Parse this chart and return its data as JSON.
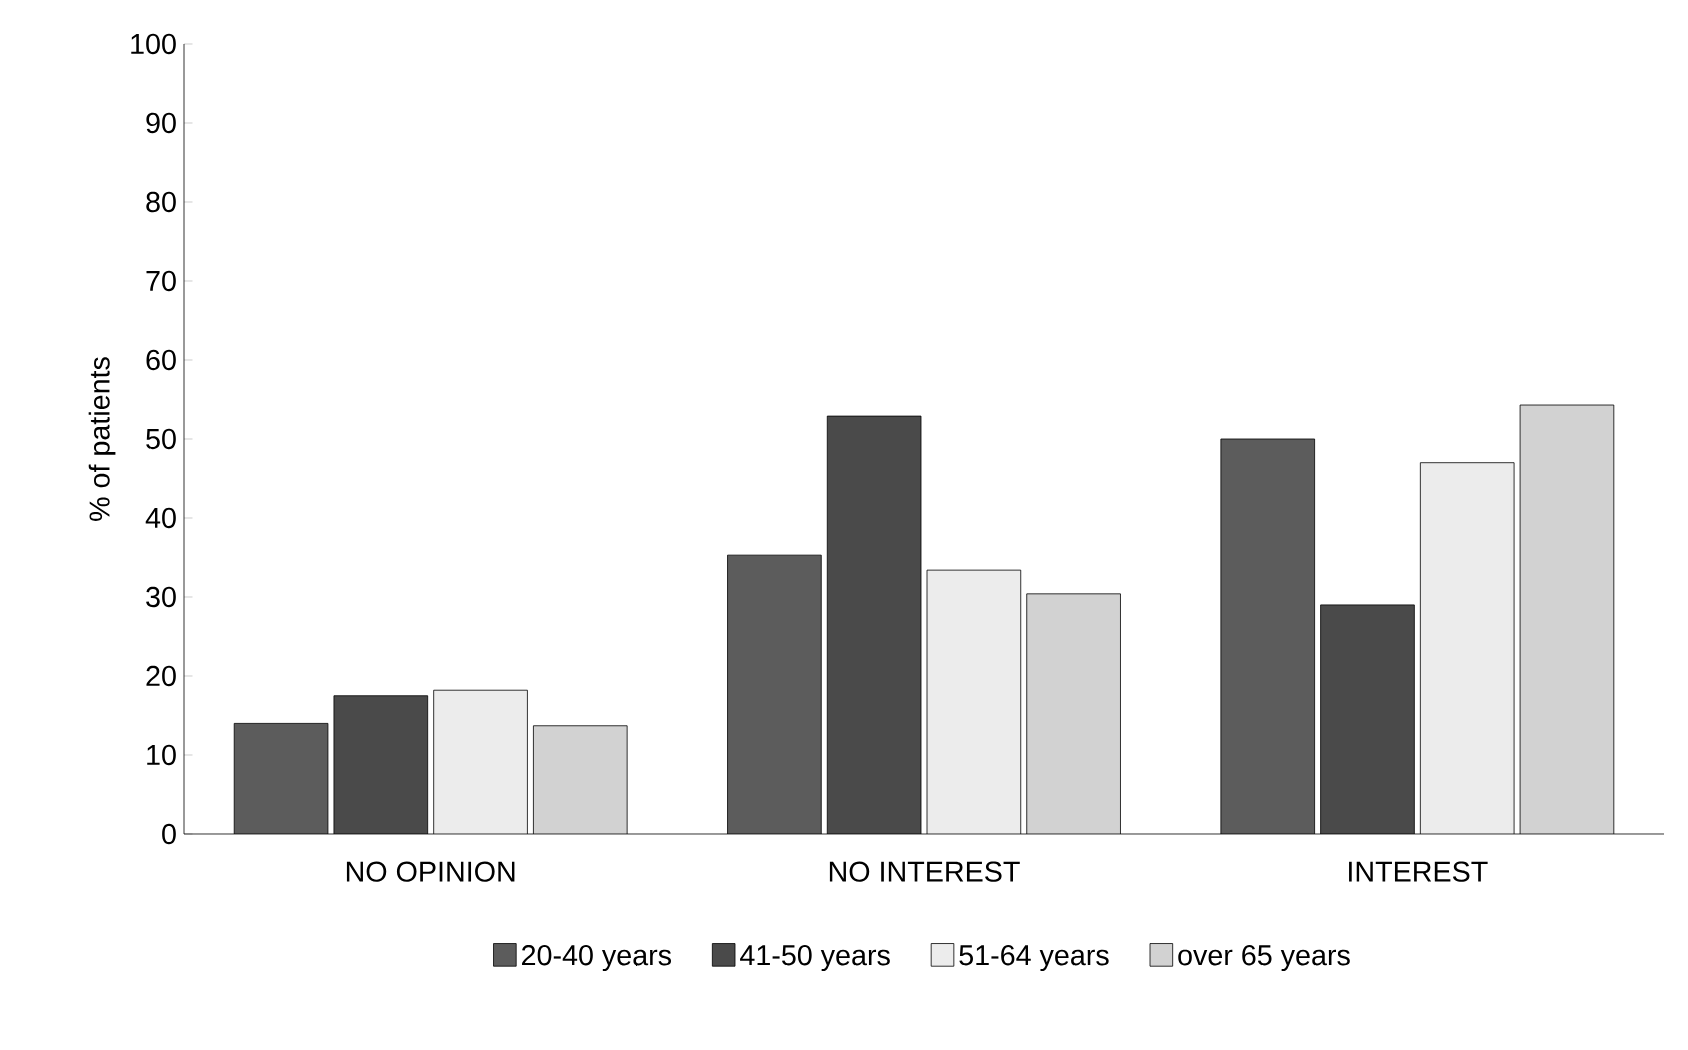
{
  "chart_data": {
    "type": "bar",
    "ylabel": "% of patients",
    "categories": [
      "NO OPINION",
      "NO INTEREST",
      "INTEREST"
    ],
    "series": [
      {
        "name": "20-40 years",
        "color": "#5c5c5c",
        "values": [
          14,
          35.3,
          50
        ]
      },
      {
        "name": "41-50 years",
        "color": "#4a4a4a",
        "values": [
          17.5,
          52.9,
          29
        ]
      },
      {
        "name": "51-64 years",
        "color": "#ececec",
        "values": [
          18.2,
          33.4,
          47
        ]
      },
      {
        "name": "over 65 years",
        "color": "#d2d2d2",
        "values": [
          13.7,
          30.4,
          54.3
        ]
      }
    ],
    "ylim": [
      0,
      100
    ],
    "yticks": [
      0,
      10,
      20,
      30,
      40,
      50,
      60,
      70,
      80,
      90,
      100
    ],
    "grid": false,
    "legend": "bottom"
  }
}
